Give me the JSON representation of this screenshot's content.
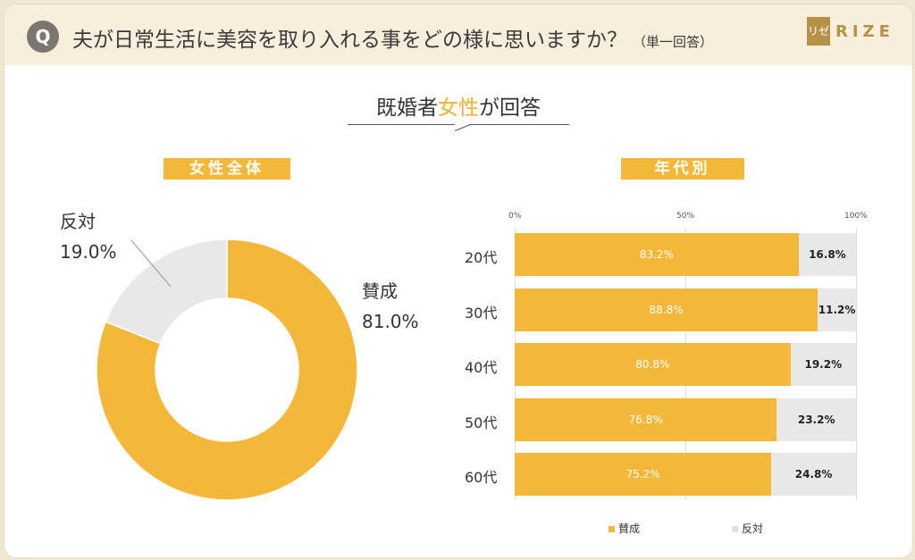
{
  "header": {
    "q_badge": "Q",
    "question": "夫が日常生活に美容を取り入れる事をどの様に思いますか？",
    "note": "（単一回答）",
    "logo_mark": "リゼ",
    "logo_text": "RIZE"
  },
  "subtitle": {
    "pre": "既婚者",
    "highlight": "女性",
    "post": "が回答"
  },
  "colors": {
    "approve": "#f3b83a",
    "oppose": "#e8e8e8",
    "header_bg": "#f7eedb"
  },
  "chart_data": [
    {
      "type": "pie",
      "title": "女性全体",
      "donut": true,
      "slices": [
        {
          "name": "賛成",
          "value": 81.0,
          "label": "81.0%"
        },
        {
          "name": "反対",
          "value": 19.0,
          "label": "19.0%"
        }
      ]
    },
    {
      "type": "bar",
      "orientation": "horizontal",
      "stacked": true,
      "title": "年代別",
      "categories": [
        "20代",
        "30代",
        "40代",
        "50代",
        "60代"
      ],
      "series": [
        {
          "name": "賛成",
          "values": [
            83.2,
            88.8,
            80.8,
            76.8,
            75.2
          ]
        },
        {
          "name": "反対",
          "values": [
            16.8,
            11.2,
            19.2,
            23.2,
            24.8
          ]
        }
      ],
      "xlim": [
        0,
        100
      ],
      "ticks": [
        "0%",
        "50%",
        "100%"
      ],
      "legend": "bottom"
    }
  ]
}
